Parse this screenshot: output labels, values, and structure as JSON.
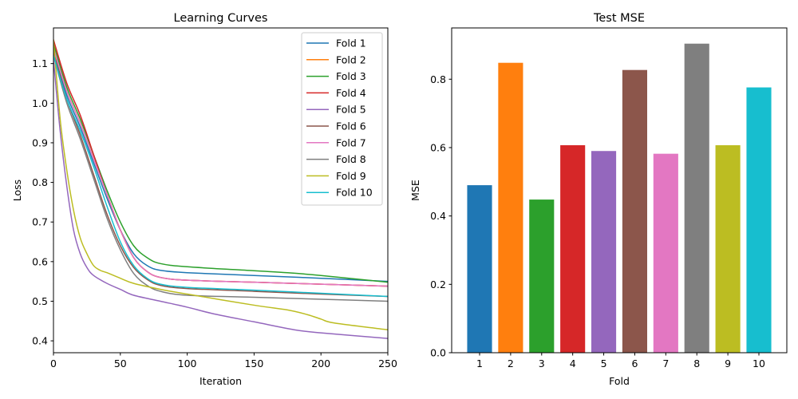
{
  "chart_data": [
    {
      "type": "line",
      "title": "Learning Curves",
      "xlabel": "Iteration",
      "ylabel": "Loss",
      "xlim": [
        0,
        250
      ],
      "ylim": [
        0.37,
        1.19
      ],
      "xticks": [
        0,
        50,
        100,
        150,
        200,
        250
      ],
      "yticks": [
        0.4,
        0.5,
        0.6,
        0.7,
        0.8,
        0.9,
        1.0,
        1.1
      ],
      "xtick_labels": [
        "0",
        "50",
        "100",
        "150",
        "200",
        "250"
      ],
      "ytick_labels": [
        "0.4",
        "0.5",
        "0.6",
        "0.7",
        "0.8",
        "0.9",
        "1.0",
        "1.1"
      ],
      "legend": "upper right",
      "grid": false,
      "series": [
        {
          "name": "Fold 1",
          "color": "#1f77b4",
          "x": [
            0,
            10,
            20,
            30,
            40,
            50,
            60,
            70,
            80,
            100,
            150,
            200,
            250
          ],
          "y": [
            1.13,
            1.02,
            0.94,
            0.85,
            0.76,
            0.68,
            0.62,
            0.59,
            0.578,
            0.572,
            0.565,
            0.558,
            0.55
          ]
        },
        {
          "name": "Fold 2",
          "color": "#ff7f0e",
          "x": [
            0,
            10,
            20,
            30,
            40,
            50,
            60,
            70,
            80,
            100,
            150,
            200,
            250
          ],
          "y": [
            1.14,
            1.03,
            0.95,
            0.86,
            0.77,
            0.68,
            0.61,
            0.575,
            0.56,
            0.553,
            0.548,
            0.543,
            0.538
          ]
        },
        {
          "name": "Fold 3",
          "color": "#2ca02c",
          "x": [
            0,
            10,
            20,
            30,
            40,
            50,
            60,
            70,
            80,
            100,
            150,
            175,
            200,
            250
          ],
          "y": [
            1.15,
            1.04,
            0.96,
            0.87,
            0.78,
            0.7,
            0.64,
            0.61,
            0.595,
            0.587,
            0.577,
            0.572,
            0.565,
            0.548
          ]
        },
        {
          "name": "Fold 4",
          "color": "#d62728",
          "x": [
            0,
            10,
            20,
            30,
            40,
            50,
            60,
            70,
            80,
            100,
            150,
            200,
            250
          ],
          "y": [
            1.16,
            1.05,
            0.97,
            0.87,
            0.77,
            0.68,
            0.61,
            0.575,
            0.56,
            0.553,
            0.548,
            0.543,
            0.538
          ]
        },
        {
          "name": "Fold 5",
          "color": "#9467bd",
          "x": [
            0,
            5,
            10,
            15,
            20,
            25,
            30,
            40,
            50,
            60,
            80,
            100,
            120,
            150,
            180,
            200,
            250
          ],
          "y": [
            1.11,
            0.93,
            0.79,
            0.68,
            0.62,
            0.585,
            0.565,
            0.545,
            0.53,
            0.515,
            0.5,
            0.485,
            0.468,
            0.448,
            0.428,
            0.42,
            0.406
          ]
        },
        {
          "name": "Fold 6",
          "color": "#8c564b",
          "x": [
            0,
            10,
            20,
            30,
            40,
            50,
            60,
            70,
            80,
            100,
            150,
            200,
            250
          ],
          "y": [
            1.13,
            1.01,
            0.92,
            0.82,
            0.72,
            0.64,
            0.585,
            0.555,
            0.54,
            0.532,
            0.525,
            0.518,
            0.512
          ]
        },
        {
          "name": "Fold 7",
          "color": "#e377c2",
          "x": [
            0,
            10,
            20,
            30,
            40,
            50,
            60,
            70,
            80,
            100,
            150,
            200,
            250
          ],
          "y": [
            1.14,
            1.03,
            0.95,
            0.86,
            0.77,
            0.68,
            0.61,
            0.575,
            0.56,
            0.553,
            0.548,
            0.543,
            0.538
          ]
        },
        {
          "name": "Fold 8",
          "color": "#7f7f7f",
          "x": [
            0,
            10,
            20,
            30,
            40,
            50,
            60,
            70,
            80,
            100,
            150,
            200,
            250
          ],
          "y": [
            1.12,
            1.0,
            0.91,
            0.81,
            0.71,
            0.63,
            0.57,
            0.54,
            0.525,
            0.515,
            0.51,
            0.505,
            0.5
          ]
        },
        {
          "name": "Fold 9",
          "color": "#bcbd22",
          "x": [
            0,
            5,
            10,
            15,
            20,
            25,
            30,
            35,
            40,
            50,
            60,
            80,
            100,
            150,
            175,
            190,
            200,
            210,
            250
          ],
          "y": [
            1.16,
            0.96,
            0.83,
            0.73,
            0.66,
            0.62,
            0.59,
            0.578,
            0.572,
            0.558,
            0.545,
            0.53,
            0.518,
            0.49,
            0.478,
            0.466,
            0.455,
            0.445,
            0.428
          ]
        },
        {
          "name": "Fold 10",
          "color": "#17becf",
          "x": [
            0,
            10,
            20,
            30,
            40,
            50,
            60,
            70,
            80,
            100,
            150,
            200,
            250
          ],
          "y": [
            1.12,
            1.01,
            0.93,
            0.84,
            0.74,
            0.65,
            0.59,
            0.558,
            0.543,
            0.535,
            0.528,
            0.52,
            0.512
          ]
        }
      ]
    },
    {
      "type": "bar",
      "title": "Test MSE",
      "xlabel": "Fold",
      "ylabel": "MSE",
      "categories": [
        "1",
        "2",
        "3",
        "4",
        "5",
        "6",
        "7",
        "8",
        "9",
        "10"
      ],
      "values": [
        0.49,
        0.848,
        0.448,
        0.607,
        0.59,
        0.827,
        0.582,
        0.904,
        0.607,
        0.776
      ],
      "colors": [
        "#1f77b4",
        "#ff7f0e",
        "#2ca02c",
        "#d62728",
        "#9467bd",
        "#8c564b",
        "#e377c2",
        "#7f7f7f",
        "#bcbd22",
        "#17becf"
      ],
      "ylim": [
        0,
        0.95
      ],
      "yticks": [
        0.0,
        0.2,
        0.4,
        0.6,
        0.8
      ],
      "ytick_labels": [
        "0.0",
        "0.2",
        "0.4",
        "0.6",
        "0.8"
      ],
      "grid": false
    }
  ]
}
